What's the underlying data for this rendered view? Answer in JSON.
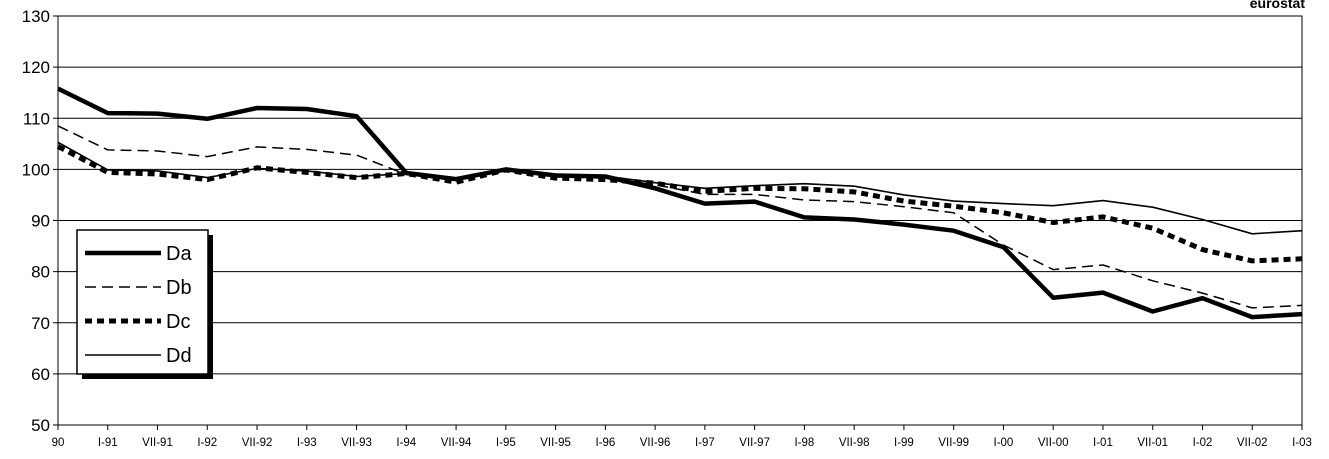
{
  "source": "eurostat",
  "chart_data": {
    "type": "line",
    "categories": [
      "90",
      "I-91",
      "VII-91",
      "I-92",
      "VII-92",
      "I-93",
      "VII-93",
      "I-94",
      "VII-94",
      "I-95",
      "VII-95",
      "I-96",
      "VII-96",
      "I-97",
      "VII-97",
      "I-98",
      "VII-98",
      "I-99",
      "VII-99",
      "I-00",
      "VII-00",
      "I-01",
      "VII-01",
      "I-02",
      "VII-02",
      "I-03"
    ],
    "ylim": [
      50,
      130
    ],
    "yticks": [
      50,
      60,
      70,
      80,
      90,
      100,
      110,
      120,
      130
    ],
    "grid": true,
    "legend_position": "left",
    "series": [
      {
        "name": "Da",
        "style": "thick-solid",
        "values": [
          115.8,
          111,
          110.9,
          109.9,
          112,
          111.8,
          110.4,
          99.3,
          98.1,
          100,
          98.8,
          98.6,
          96.3,
          93.3,
          93.7,
          90.6,
          90.2,
          89.2,
          88,
          84.8,
          74.9,
          75.9,
          72.2,
          74.8,
          71.1,
          71.7
        ]
      },
      {
        "name": "Db",
        "style": "dashed",
        "values": [
          108.5,
          103.8,
          103.6,
          102.5,
          104.4,
          103.9,
          102.8,
          99,
          98.3,
          100,
          98.6,
          98.3,
          97,
          95.1,
          95.1,
          94,
          93.7,
          92.7,
          91.5,
          85.2,
          80.4,
          81.3,
          78.2,
          75.8,
          72.9,
          73.4
        ]
      },
      {
        "name": "Dc",
        "style": "thick-dotted",
        "values": [
          104.5,
          99.4,
          99.1,
          98,
          100.3,
          99.4,
          98.4,
          99.2,
          97.5,
          99.9,
          98.3,
          98,
          97.3,
          95.7,
          96.3,
          96.2,
          95.6,
          93.8,
          92.8,
          91.5,
          89.6,
          90.7,
          88.5,
          84.3,
          82.1,
          82.5
        ]
      },
      {
        "name": "Dd",
        "style": "thin-solid",
        "values": [
          105.3,
          99.9,
          99.7,
          98.4,
          100.2,
          99.7,
          98.6,
          99.2,
          98,
          100,
          99.1,
          98.7,
          97.4,
          96.3,
          96.8,
          97.2,
          96.7,
          95,
          93.8,
          93.3,
          92.9,
          93.9,
          92.6,
          90.2,
          87.4,
          88
        ]
      }
    ]
  }
}
